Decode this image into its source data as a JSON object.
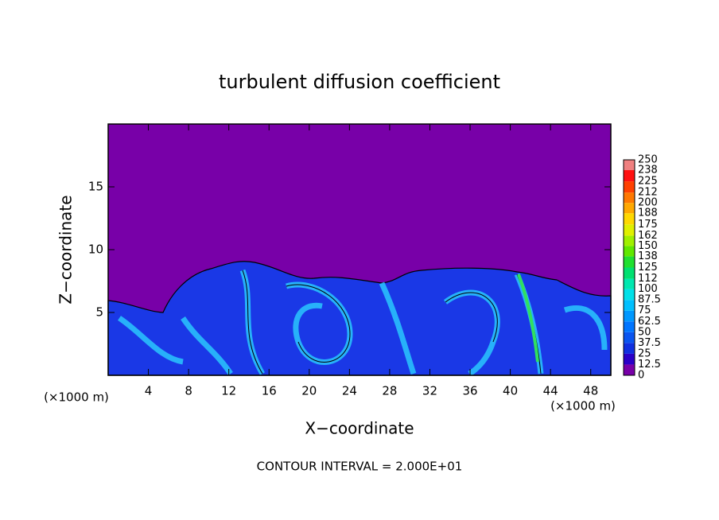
{
  "chart_data": {
    "type": "contour",
    "title": "turbulent diffusion coefficient",
    "xlabel": "X−coordinate",
    "ylabel": "Z−coordinate",
    "x_unit_left": "(×1000 m)",
    "x_unit_right": "(×1000 m)",
    "footer": "CONTOUR INTERVAL = 2.000E+01",
    "xlim": [
      0,
      50
    ],
    "ylim": [
      0,
      20
    ],
    "xticks": [
      4,
      8,
      12,
      16,
      20,
      24,
      28,
      32,
      36,
      40,
      44,
      48
    ],
    "yticks": [
      5,
      10,
      15
    ],
    "colorbar": {
      "levels": [
        0,
        12.5,
        25,
        37.5,
        50,
        62.5,
        75,
        87.5,
        100,
        112,
        125,
        138,
        150,
        162,
        175,
        188,
        200,
        212,
        225,
        238,
        250
      ],
      "colors": [
        "#7800a8",
        "#2a00c8",
        "#1030e0",
        "#0a55f0",
        "#0075ff",
        "#0098ff",
        "#00c0ff",
        "#00e0e8",
        "#00e8b0",
        "#00e070",
        "#20e030",
        "#60e800",
        "#a0f000",
        "#e0f000",
        "#ffd800",
        "#ffa800",
        "#ff7800",
        "#ff4000",
        "#ff1010",
        "#f08080"
      ]
    }
  }
}
